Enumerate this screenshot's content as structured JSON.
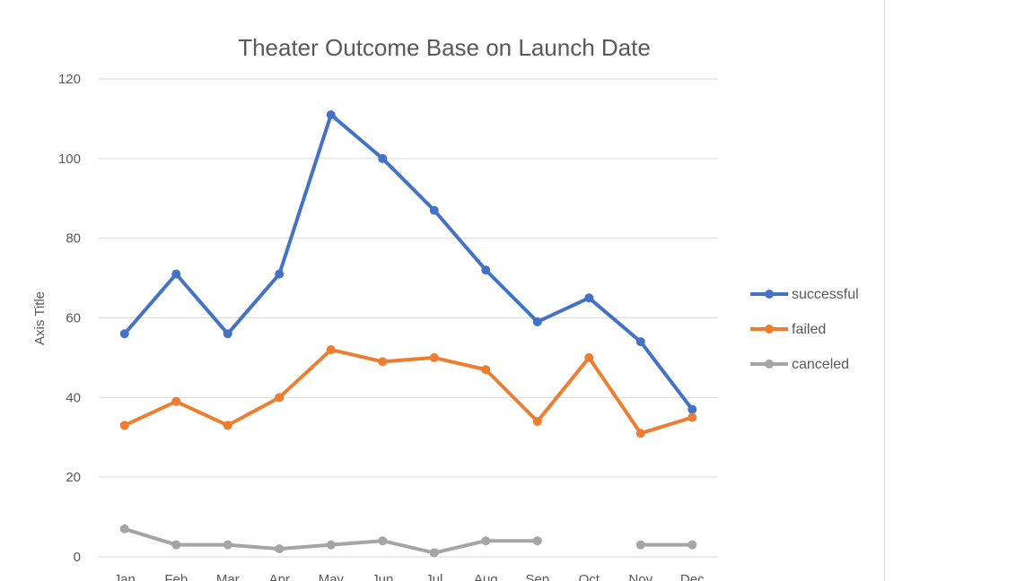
{
  "chart_data": {
    "type": "line",
    "title": "Theater Outcome Base on Launch Date",
    "xlabel": "",
    "ylabel": "Axis Title",
    "categories": [
      "Jan",
      "Feb",
      "Mar",
      "Apr",
      "May",
      "Jun",
      "Jul",
      "Aug",
      "Sep",
      "Oct",
      "Nov",
      "Dec"
    ],
    "ylim": [
      0,
      120
    ],
    "yticks": [
      0,
      20,
      40,
      60,
      80,
      100,
      120
    ],
    "grid": true,
    "legend": "right",
    "series": [
      {
        "name": "successful",
        "color": "#4472c4",
        "values": [
          56,
          71,
          56,
          71,
          111,
          100,
          87,
          72,
          59,
          65,
          54,
          37
        ]
      },
      {
        "name": "failed",
        "color": "#ed7d31",
        "values": [
          33,
          39,
          33,
          40,
          52,
          49,
          50,
          47,
          34,
          50,
          31,
          35
        ]
      },
      {
        "name": "canceled",
        "color": "#a5a5a5",
        "values": [
          7,
          3,
          3,
          2,
          3,
          4,
          1,
          4,
          4,
          null,
          3,
          3
        ]
      }
    ]
  }
}
